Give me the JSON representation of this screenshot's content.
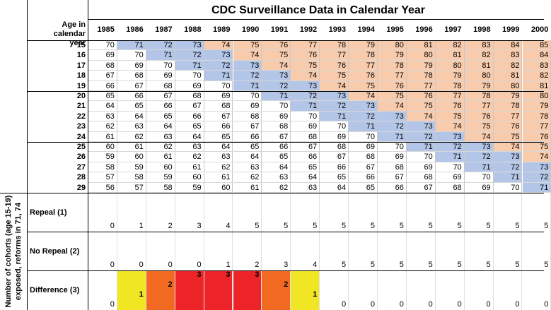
{
  "side_label": "Number of cohorts (age 15-19) exposed, reforms in 71, 74",
  "title": "CDC Surveillance Data in Calendar Year",
  "header": {
    "age_label": "Age in calendar year",
    "years": [
      1985,
      1986,
      1987,
      1988,
      1989,
      1990,
      1991,
      1992,
      1993,
      1994,
      1995,
      1996,
      1997,
      1998,
      1999,
      2000
    ]
  },
  "rows": [
    {
      "age": 15,
      "values": [
        70,
        71,
        72,
        73,
        74,
        75,
        76,
        77,
        78,
        79,
        80,
        81,
        82,
        83,
        84,
        85
      ],
      "fills": [
        null,
        "#b4c6e7",
        "#b4c6e7",
        "#b4c6e7",
        "#f8cbad",
        "#f8cbad",
        "#f8cbad",
        "#f8cbad",
        "#f8cbad",
        "#f8cbad",
        "#f8cbad",
        "#f8cbad",
        "#f8cbad",
        "#f8cbad",
        "#f8cbad",
        "#f8cbad"
      ]
    },
    {
      "age": 16,
      "values": [
        69,
        70,
        71,
        72,
        73,
        74,
        75,
        76,
        77,
        78,
        79,
        80,
        81,
        82,
        83,
        84
      ],
      "fills": [
        null,
        null,
        "#b4c6e7",
        "#b4c6e7",
        "#b4c6e7",
        "#f8cbad",
        "#f8cbad",
        "#f8cbad",
        "#f8cbad",
        "#f8cbad",
        "#f8cbad",
        "#f8cbad",
        "#f8cbad",
        "#f8cbad",
        "#f8cbad",
        "#f8cbad"
      ]
    },
    {
      "age": 17,
      "values": [
        68,
        69,
        70,
        71,
        72,
        73,
        74,
        75,
        76,
        77,
        78,
        79,
        80,
        81,
        82,
        83
      ],
      "fills": [
        null,
        null,
        null,
        "#b4c6e7",
        "#b4c6e7",
        "#b4c6e7",
        "#f8cbad",
        "#f8cbad",
        "#f8cbad",
        "#f8cbad",
        "#f8cbad",
        "#f8cbad",
        "#f8cbad",
        "#f8cbad",
        "#f8cbad",
        "#f8cbad"
      ]
    },
    {
      "age": 18,
      "values": [
        67,
        68,
        69,
        70,
        71,
        72,
        73,
        74,
        75,
        76,
        77,
        78,
        79,
        80,
        81,
        82
      ],
      "fills": [
        null,
        null,
        null,
        null,
        "#b4c6e7",
        "#b4c6e7",
        "#b4c6e7",
        "#f8cbad",
        "#f8cbad",
        "#f8cbad",
        "#f8cbad",
        "#f8cbad",
        "#f8cbad",
        "#f8cbad",
        "#f8cbad",
        "#f8cbad"
      ]
    },
    {
      "age": 19,
      "values": [
        66,
        67,
        68,
        69,
        70,
        71,
        72,
        73,
        74,
        75,
        76,
        77,
        78,
        79,
        80,
        81
      ],
      "fills": [
        null,
        null,
        null,
        null,
        null,
        "#b4c6e7",
        "#b4c6e7",
        "#b4c6e7",
        "#f8cbad",
        "#f8cbad",
        "#f8cbad",
        "#f8cbad",
        "#f8cbad",
        "#f8cbad",
        "#f8cbad",
        "#f8cbad"
      ]
    },
    {
      "age": 20,
      "values": [
        65,
        66,
        67,
        68,
        69,
        70,
        71,
        72,
        73,
        74,
        75,
        76,
        77,
        78,
        79,
        80
      ],
      "fills": [
        null,
        null,
        null,
        null,
        null,
        null,
        "#b4c6e7",
        "#b4c6e7",
        "#b4c6e7",
        "#f8cbad",
        "#f8cbad",
        "#f8cbad",
        "#f8cbad",
        "#f8cbad",
        "#f8cbad",
        "#f8cbad"
      ]
    },
    {
      "age": 21,
      "values": [
        64,
        65,
        66,
        67,
        68,
        69,
        70,
        71,
        72,
        73,
        74,
        75,
        76,
        77,
        78,
        79
      ],
      "fills": [
        null,
        null,
        null,
        null,
        null,
        null,
        null,
        "#b4c6e7",
        "#b4c6e7",
        "#b4c6e7",
        "#f8cbad",
        "#f8cbad",
        "#f8cbad",
        "#f8cbad",
        "#f8cbad",
        "#f8cbad"
      ]
    },
    {
      "age": 22,
      "values": [
        63,
        64,
        65,
        66,
        67,
        68,
        69,
        70,
        71,
        72,
        73,
        74,
        75,
        76,
        77,
        78
      ],
      "fills": [
        null,
        null,
        null,
        null,
        null,
        null,
        null,
        null,
        "#b4c6e7",
        "#b4c6e7",
        "#b4c6e7",
        "#f8cbad",
        "#f8cbad",
        "#f8cbad",
        "#f8cbad",
        "#f8cbad"
      ]
    },
    {
      "age": 23,
      "values": [
        62,
        63,
        64,
        65,
        66,
        67,
        68,
        69,
        70,
        71,
        72,
        73,
        74,
        75,
        76,
        77
      ],
      "fills": [
        null,
        null,
        null,
        null,
        null,
        null,
        null,
        null,
        null,
        "#b4c6e7",
        "#b4c6e7",
        "#b4c6e7",
        "#f8cbad",
        "#f8cbad",
        "#f8cbad",
        "#f8cbad"
      ]
    },
    {
      "age": 24,
      "values": [
        61,
        62,
        63,
        64,
        65,
        66,
        67,
        68,
        69,
        70,
        71,
        72,
        73,
        74,
        75,
        76
      ],
      "fills": [
        null,
        null,
        null,
        null,
        null,
        null,
        null,
        null,
        null,
        null,
        "#b4c6e7",
        "#b4c6e7",
        "#b4c6e7",
        "#f8cbad",
        "#f8cbad",
        "#f8cbad"
      ]
    },
    {
      "age": 25,
      "values": [
        60,
        61,
        62,
        63,
        64,
        65,
        66,
        67,
        68,
        69,
        70,
        71,
        72,
        73,
        74,
        75
      ],
      "fills": [
        null,
        null,
        null,
        null,
        null,
        null,
        null,
        null,
        null,
        null,
        null,
        "#b4c6e7",
        "#b4c6e7",
        "#b4c6e7",
        "#f8cbad",
        "#f8cbad"
      ]
    },
    {
      "age": 26,
      "values": [
        59,
        60,
        61,
        62,
        63,
        64,
        65,
        66,
        67,
        68,
        69,
        70,
        71,
        72,
        73,
        74
      ],
      "fills": [
        null,
        null,
        null,
        null,
        null,
        null,
        null,
        null,
        null,
        null,
        null,
        null,
        "#b4c6e7",
        "#b4c6e7",
        "#b4c6e7",
        "#f8cbad"
      ]
    },
    {
      "age": 27,
      "values": [
        58,
        59,
        60,
        61,
        62,
        63,
        64,
        65,
        66,
        67,
        68,
        69,
        70,
        71,
        72,
        73
      ],
      "fills": [
        null,
        null,
        null,
        null,
        null,
        null,
        null,
        null,
        null,
        null,
        null,
        null,
        null,
        "#b4c6e7",
        "#b4c6e7",
        "#b4c6e7"
      ]
    },
    {
      "age": 28,
      "values": [
        57,
        58,
        59,
        60,
        61,
        62,
        63,
        64,
        65,
        66,
        67,
        68,
        69,
        70,
        71,
        72
      ],
      "fills": [
        null,
        null,
        null,
        null,
        null,
        null,
        null,
        null,
        null,
        null,
        null,
        null,
        null,
        null,
        "#b4c6e7",
        "#b4c6e7"
      ]
    },
    {
      "age": 29,
      "values": [
        56,
        57,
        58,
        59,
        60,
        61,
        62,
        63,
        64,
        65,
        66,
        67,
        68,
        69,
        70,
        71
      ],
      "fills": [
        null,
        null,
        null,
        null,
        null,
        null,
        null,
        null,
        null,
        null,
        null,
        null,
        null,
        null,
        null,
        "#b4c6e7"
      ]
    }
  ],
  "summary": [
    {
      "label": "Repeal (1)",
      "values": [
        0,
        1,
        2,
        3,
        4,
        5,
        5,
        5,
        5,
        5,
        5,
        5,
        5,
        5,
        5,
        5
      ]
    },
    {
      "label": "No Repeal (2)",
      "values": [
        0,
        0,
        0,
        0,
        1,
        2,
        3,
        4,
        5,
        5,
        5,
        5,
        5,
        5,
        5,
        5
      ]
    },
    {
      "label": "Difference (3)",
      "values": [
        0,
        1,
        2,
        3,
        3,
        3,
        2,
        1,
        0,
        0,
        0,
        0,
        0,
        0,
        0,
        0
      ],
      "fills": [
        null,
        "#f0e624",
        "#f26a22",
        "#ec2427",
        "#ec2427",
        "#ec2427",
        "#f26a22",
        "#f0e624",
        null,
        null,
        null,
        null,
        null,
        null,
        null,
        null
      ]
    }
  ]
}
